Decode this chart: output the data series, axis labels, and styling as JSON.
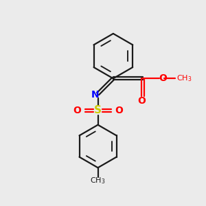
{
  "bg_color": "#ebebeb",
  "bond_color": "#1a1a1a",
  "N_color": "#0000ff",
  "S_color": "#cccc00",
  "O_color": "#ff0000",
  "line_width": 1.6,
  "figsize": [
    3.0,
    3.0
  ],
  "dpi": 100,
  "xlim": [
    0,
    10
  ],
  "ylim": [
    0,
    10
  ]
}
